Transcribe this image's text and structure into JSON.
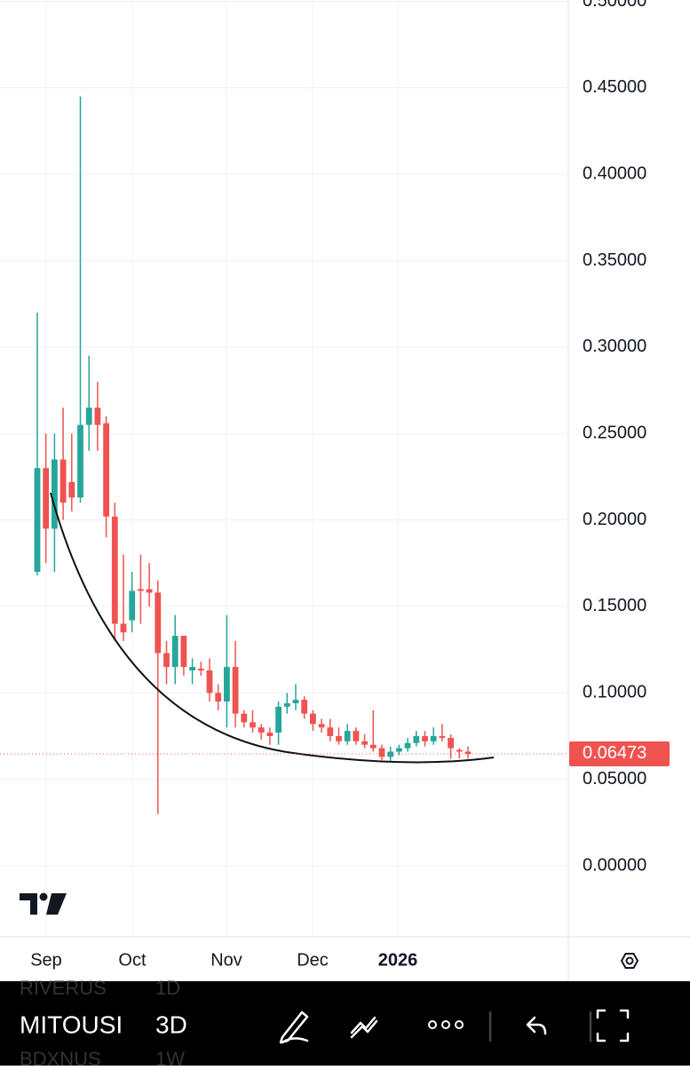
{
  "chart_data": {
    "type": "candlestick",
    "open": [
      0.17,
      0.23,
      0.195,
      0.235,
      0.222,
      0.213,
      0.255,
      0.265,
      0.256,
      0.202,
      0.14,
      0.142,
      0.16,
      0.16,
      0.158,
      0.123,
      0.115,
      0.133,
      0.113,
      0.114,
      0.113,
      0.1,
      0.095,
      0.115,
      0.088,
      0.083,
      0.08,
      0.077,
      0.077,
      0.092,
      0.094,
      0.096,
      0.088,
      0.082,
      0.08,
      0.075,
      0.072,
      0.078,
      0.072,
      0.07,
      0.068,
      0.063,
      0.066,
      0.068,
      0.071,
      0.075,
      0.072,
      0.075,
      0.074,
      0.067,
      0.066
    ],
    "high": [
      0.32,
      0.25,
      0.25,
      0.265,
      0.25,
      0.445,
      0.295,
      0.28,
      0.26,
      0.21,
      0.18,
      0.17,
      0.18,
      0.175,
      0.165,
      0.13,
      0.145,
      0.133,
      0.12,
      0.118,
      0.12,
      0.105,
      0.145,
      0.13,
      0.09,
      0.09,
      0.082,
      0.08,
      0.095,
      0.1,
      0.105,
      0.098,
      0.09,
      0.085,
      0.085,
      0.08,
      0.082,
      0.08,
      0.076,
      0.09,
      0.07,
      0.069,
      0.07,
      0.074,
      0.078,
      0.078,
      0.08,
      0.082,
      0.076,
      0.068,
      0.069
    ],
    "low": [
      0.168,
      0.175,
      0.17,
      0.2,
      0.205,
      0.21,
      0.24,
      0.24,
      0.19,
      0.13,
      0.13,
      0.135,
      0.14,
      0.15,
      0.03,
      0.105,
      0.105,
      0.11,
      0.105,
      0.11,
      0.095,
      0.09,
      0.08,
      0.08,
      0.08,
      0.077,
      0.073,
      0.07,
      0.07,
      0.088,
      0.09,
      0.085,
      0.078,
      0.077,
      0.072,
      0.07,
      0.07,
      0.07,
      0.068,
      0.066,
      0.061,
      0.06,
      0.064,
      0.066,
      0.069,
      0.069,
      0.07,
      0.072,
      0.062,
      0.062,
      0.062
    ],
    "close": [
      0.23,
      0.195,
      0.235,
      0.21,
      0.213,
      0.255,
      0.265,
      0.255,
      0.202,
      0.14,
      0.135,
      0.159,
      0.159,
      0.158,
      0.123,
      0.115,
      0.133,
      0.115,
      0.115,
      0.113,
      0.1,
      0.095,
      0.115,
      0.088,
      0.083,
      0.08,
      0.077,
      0.075,
      0.092,
      0.094,
      0.096,
      0.088,
      0.082,
      0.08,
      0.075,
      0.072,
      0.078,
      0.072,
      0.07,
      0.068,
      0.063,
      0.066,
      0.068,
      0.071,
      0.075,
      0.072,
      0.075,
      0.074,
      0.068,
      0.066,
      0.06473
    ],
    "up_color": "#26a69a",
    "down_color": "#ef5350",
    "last_price": 0.06473,
    "ylim": [
      -0.0411,
      0.5008
    ],
    "yticks": [
      {
        "value": 0,
        "label": "0.00000"
      },
      {
        "value": 0.05,
        "label": "0.05000"
      },
      {
        "value": 0.1,
        "label": "0.10000"
      },
      {
        "value": 0.15,
        "label": "0.15000"
      },
      {
        "value": 0.2,
        "label": "0.20000"
      },
      {
        "value": 0.25,
        "label": "0.25000"
      },
      {
        "value": 0.3,
        "label": "0.30000"
      },
      {
        "value": 0.35,
        "label": "0.35000"
      },
      {
        "value": 0.4,
        "label": "0.40000"
      },
      {
        "value": 0.45,
        "label": "0.45000"
      },
      {
        "value": 0.5,
        "label": "0.50000"
      }
    ],
    "xlim": [
      -4.33,
      61.65
    ],
    "xticks": [
      {
        "value": 1.03,
        "label": "Sep"
      },
      {
        "value": 11.03,
        "label": "Oct"
      },
      {
        "value": 21.96,
        "label": "Nov"
      },
      {
        "value": 31.96,
        "label": "Dec"
      },
      {
        "value": 41.86,
        "label": "2026"
      }
    ],
    "grid": true
  },
  "toolbar": {
    "symbols": [
      "RIVERUS",
      "MITOUSI",
      "BDXNUS"
    ],
    "intervals": [
      "1D",
      "3D",
      "1W"
    ]
  }
}
